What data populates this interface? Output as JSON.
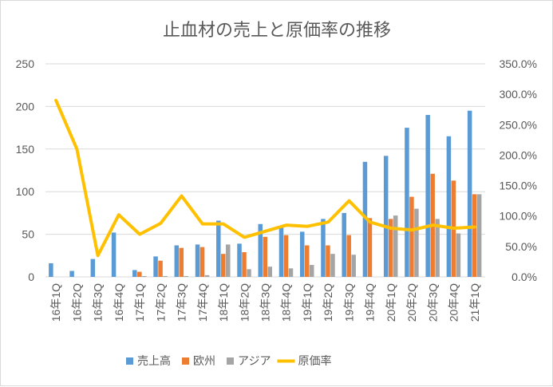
{
  "chart_data": {
    "type": "bar",
    "title": "止血材の売上と原価率の推移",
    "categories": [
      "16年1Q",
      "16年2Q",
      "16年3Q",
      "16年4Q",
      "17年1Q",
      "17年2Q",
      "17年3Q",
      "17年4Q",
      "18年1Q",
      "18年2Q",
      "18年3Q",
      "18年4Q",
      "19年1Q",
      "19年2Q",
      "19年3Q",
      "19年4Q",
      "20年1Q",
      "20年2Q",
      "20年3Q",
      "20年4Q",
      "21年1Q"
    ],
    "series": [
      {
        "name": "売上高",
        "kind": "bar",
        "axis": "left",
        "color": "#5b9bd5",
        "values": [
          16,
          7,
          21,
          52,
          8,
          24,
          37,
          38,
          66,
          39,
          62,
          59,
          53,
          68,
          75,
          135,
          142,
          175,
          190,
          165,
          195
        ]
      },
      {
        "name": "欧州",
        "kind": "bar",
        "axis": "left",
        "color": "#ed7d31",
        "values": [
          0,
          0,
          0,
          0,
          6,
          19,
          34,
          35,
          27,
          29,
          47,
          49,
          37,
          37,
          49,
          69,
          68,
          94,
          121,
          113,
          97
        ]
      },
      {
        "name": "アジア",
        "kind": "bar",
        "axis": "left",
        "color": "#a5a5a5",
        "values": [
          0,
          0,
          0,
          0,
          1,
          1,
          1,
          2,
          38,
          9,
          12,
          10,
          14,
          27,
          26,
          0,
          72,
          80,
          68,
          51,
          97
        ]
      },
      {
        "name": "原価率",
        "kind": "line",
        "axis": "right",
        "color": "#ffc000",
        "values": [
          290,
          210,
          35,
          102,
          70,
          88,
          133,
          87,
          87,
          65,
          75,
          85,
          83,
          90,
          125,
          90,
          80,
          77,
          85,
          80,
          82
        ]
      }
    ],
    "y_left": {
      "min": 0,
      "max": 250,
      "ticks": [
        "0",
        "50",
        "100",
        "150",
        "200",
        "250"
      ]
    },
    "y_right": {
      "min": 0,
      "max": 350,
      "ticks": [
        "0.0%",
        "50.0%",
        "100.0%",
        "150.0%",
        "200.0%",
        "250.0%",
        "300.0%",
        "350.0%"
      ]
    },
    "grid": true,
    "legend_position": "bottom"
  }
}
